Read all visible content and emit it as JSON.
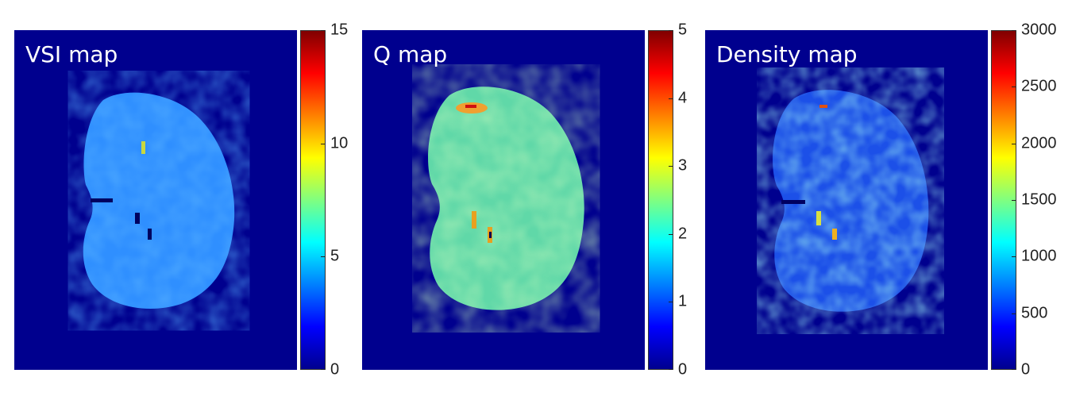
{
  "panels": [
    {
      "title": "VSI map",
      "ticks": [
        "15",
        "10",
        "5",
        "0"
      ],
      "tick_fractions": [
        1,
        0.6667,
        0.3333,
        0
      ]
    },
    {
      "title": "Q map",
      "ticks": [
        "5",
        "4",
        "3",
        "2",
        "1",
        "0"
      ],
      "tick_fractions": [
        1,
        0.8,
        0.6,
        0.4,
        0.2,
        0
      ]
    },
    {
      "title": "Density map",
      "ticks": [
        "3000",
        "2500",
        "2000",
        "1500",
        "1000",
        "500",
        "0"
      ],
      "tick_fractions": [
        1,
        0.8333,
        0.6667,
        0.5,
        0.3333,
        0.1667,
        0
      ]
    }
  ],
  "colors": {
    "background": "#00008e",
    "vsi_tissue": "#2f8fff",
    "q_tissue": "#6ee0a0",
    "density_tissue": "#1e6cff",
    "colormap": "jet"
  }
}
